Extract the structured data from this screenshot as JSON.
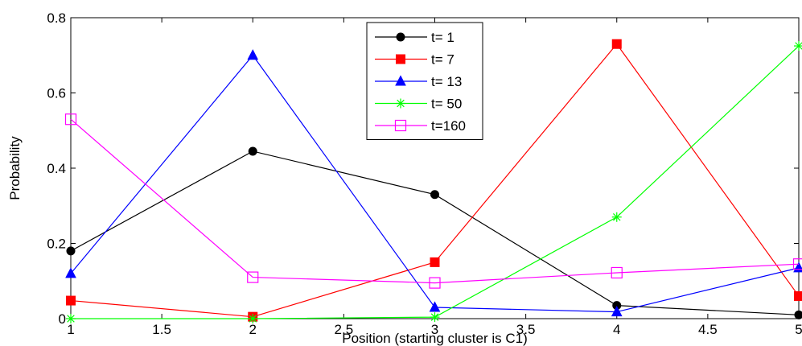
{
  "chart_data": {
    "type": "line",
    "title": "",
    "xlabel": "Position (starting cluster is C1)",
    "ylabel": "Probability",
    "xlim": [
      1,
      5
    ],
    "ylim": [
      0,
      0.8
    ],
    "xticks": [
      "1",
      "1.5",
      "2",
      "2.5",
      "3",
      "3.5",
      "4",
      "4.5",
      "5"
    ],
    "xtick_values": [
      1,
      1.5,
      2,
      2.5,
      3,
      3.5,
      4,
      4.5,
      5
    ],
    "yticks": [
      "0",
      "0.2",
      "0.4",
      "0.6",
      "0.8"
    ],
    "ytick_values": [
      0,
      0.2,
      0.4,
      0.6,
      0.8
    ],
    "grid": false,
    "legend_position": "top-center",
    "x": [
      1,
      2,
      3,
      4,
      5
    ],
    "series": [
      {
        "name": "t= 1",
        "color": "#000000",
        "marker": "circle",
        "values": [
          0.18,
          0.445,
          0.33,
          0.035,
          0.01
        ]
      },
      {
        "name": "t= 7",
        "color": "#ff0000",
        "marker": "square",
        "values": [
          0.048,
          0.005,
          0.15,
          0.73,
          0.06
        ]
      },
      {
        "name": "t= 13",
        "color": "#0000ff",
        "marker": "triangle",
        "values": [
          0.12,
          0.7,
          0.03,
          0.018,
          0.135
        ]
      },
      {
        "name": "t= 50",
        "color": "#00ff00",
        "marker": "star",
        "values": [
          0.0,
          0.0,
          0.004,
          0.27,
          0.725
        ]
      },
      {
        "name": "t=160",
        "color": "#ff00ff",
        "marker": "open-square",
        "values": [
          0.53,
          0.11,
          0.095,
          0.122,
          0.145
        ]
      }
    ]
  }
}
